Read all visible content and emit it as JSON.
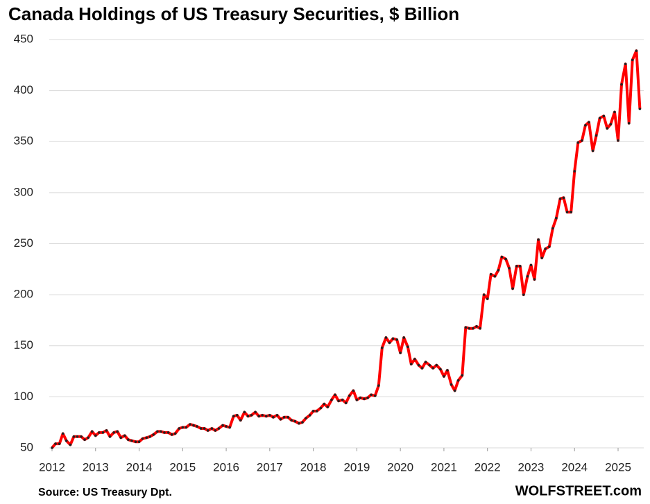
{
  "chart_data": {
    "type": "line",
    "title": "Canada Holdings of US Treasury Securities, $ Billion",
    "source": "Source: US Treasury  Dpt.",
    "brand": "WOLFSTREET.com",
    "x": [
      2012,
      2012.08,
      2012.17,
      2012.25,
      2012.33,
      2012.42,
      2012.5,
      2012.58,
      2012.67,
      2012.75,
      2012.83,
      2012.92,
      2013,
      2013.08,
      2013.17,
      2013.25,
      2013.33,
      2013.42,
      2013.5,
      2013.58,
      2013.67,
      2013.75,
      2013.83,
      2013.92,
      2014,
      2014.08,
      2014.17,
      2014.25,
      2014.33,
      2014.42,
      2014.5,
      2014.58,
      2014.67,
      2014.75,
      2014.83,
      2014.92,
      2015,
      2015.08,
      2015.17,
      2015.25,
      2015.33,
      2015.42,
      2015.5,
      2015.58,
      2015.67,
      2015.75,
      2015.83,
      2015.92,
      2016,
      2016.08,
      2016.17,
      2016.25,
      2016.33,
      2016.42,
      2016.5,
      2016.58,
      2016.67,
      2016.75,
      2016.83,
      2016.92,
      2017,
      2017.08,
      2017.17,
      2017.25,
      2017.33,
      2017.42,
      2017.5,
      2017.58,
      2017.67,
      2017.75,
      2017.83,
      2017.92,
      2018,
      2018.08,
      2018.17,
      2018.25,
      2018.33,
      2018.42,
      2018.5,
      2018.58,
      2018.67,
      2018.75,
      2018.83,
      2018.92,
      2019,
      2019.08,
      2019.17,
      2019.25,
      2019.33,
      2019.42,
      2019.5,
      2019.58,
      2019.67,
      2019.75,
      2019.83,
      2019.92,
      2020,
      2020.08,
      2020.17,
      2020.25,
      2020.33,
      2020.42,
      2020.5,
      2020.58,
      2020.67,
      2020.75,
      2020.83,
      2020.92,
      2021,
      2021.08,
      2021.17,
      2021.25,
      2021.33,
      2021.42,
      2021.5,
      2021.58,
      2021.67,
      2021.75,
      2021.83,
      2021.92,
      2022,
      2022.08,
      2022.17,
      2022.25,
      2022.33,
      2022.42,
      2022.5,
      2022.58,
      2022.67,
      2022.75,
      2022.83,
      2022.92,
      2023,
      2023.08,
      2023.17,
      2023.25,
      2023.33,
      2023.42,
      2023.5,
      2023.58,
      2023.67,
      2023.75,
      2023.83,
      2023.92,
      2024,
      2024.08,
      2024.17,
      2024.25,
      2024.33,
      2024.42,
      2024.5,
      2024.58,
      2024.67,
      2024.75,
      2024.83,
      2024.92,
      2025,
      2025.08,
      2025.17,
      2025.25,
      2025.33,
      2025.42,
      2025.5
    ],
    "series": [
      {
        "color": "#ff0000",
        "marker_color": "#222222",
        "values": [
          50,
          54,
          54,
          64,
          57,
          53,
          61,
          61,
          61,
          58,
          60,
          66,
          62,
          65,
          65,
          67,
          61,
          65,
          66,
          60,
          62,
          58,
          57,
          56,
          56,
          59,
          60,
          61,
          63,
          66,
          66,
          65,
          65,
          63,
          64,
          69,
          70,
          70,
          73,
          72,
          71,
          69,
          69,
          67,
          69,
          67,
          69,
          72,
          71,
          70,
          81,
          82,
          77,
          85,
          81,
          82,
          85,
          81,
          82,
          81,
          82,
          80,
          82,
          78,
          80,
          80,
          77,
          76,
          74,
          75,
          79,
          82,
          86,
          86,
          89,
          93,
          90,
          97,
          102,
          96,
          97,
          94,
          101,
          106,
          97,
          99,
          98,
          99,
          102,
          101,
          111,
          148,
          158,
          153,
          157,
          156,
          143,
          158,
          149,
          132,
          137,
          131,
          128,
          134,
          131,
          128,
          131,
          127,
          120,
          126,
          112,
          106,
          116,
          121,
          168,
          167,
          167,
          169,
          167,
          200,
          196,
          220,
          218,
          224,
          237,
          235,
          226,
          206,
          228,
          228,
          200,
          218,
          229,
          215,
          254,
          236,
          245,
          247,
          265,
          275,
          294,
          295,
          281,
          281,
          321,
          349,
          351,
          366,
          369,
          341,
          356,
          373,
          375,
          363,
          367,
          379,
          351,
          406,
          426,
          368,
          430,
          439,
          382
        ]
      }
    ],
    "xlim": [
      2012,
      2025.55
    ],
    "xticks": [
      2012,
      2013,
      2014,
      2015,
      2016,
      2017,
      2018,
      2019,
      2020,
      2021,
      2022,
      2023,
      2024,
      2025
    ],
    "ylim": [
      50,
      450
    ],
    "yticks": [
      50,
      100,
      150,
      200,
      250,
      300,
      350,
      400,
      450
    ],
    "grid": true
  }
}
